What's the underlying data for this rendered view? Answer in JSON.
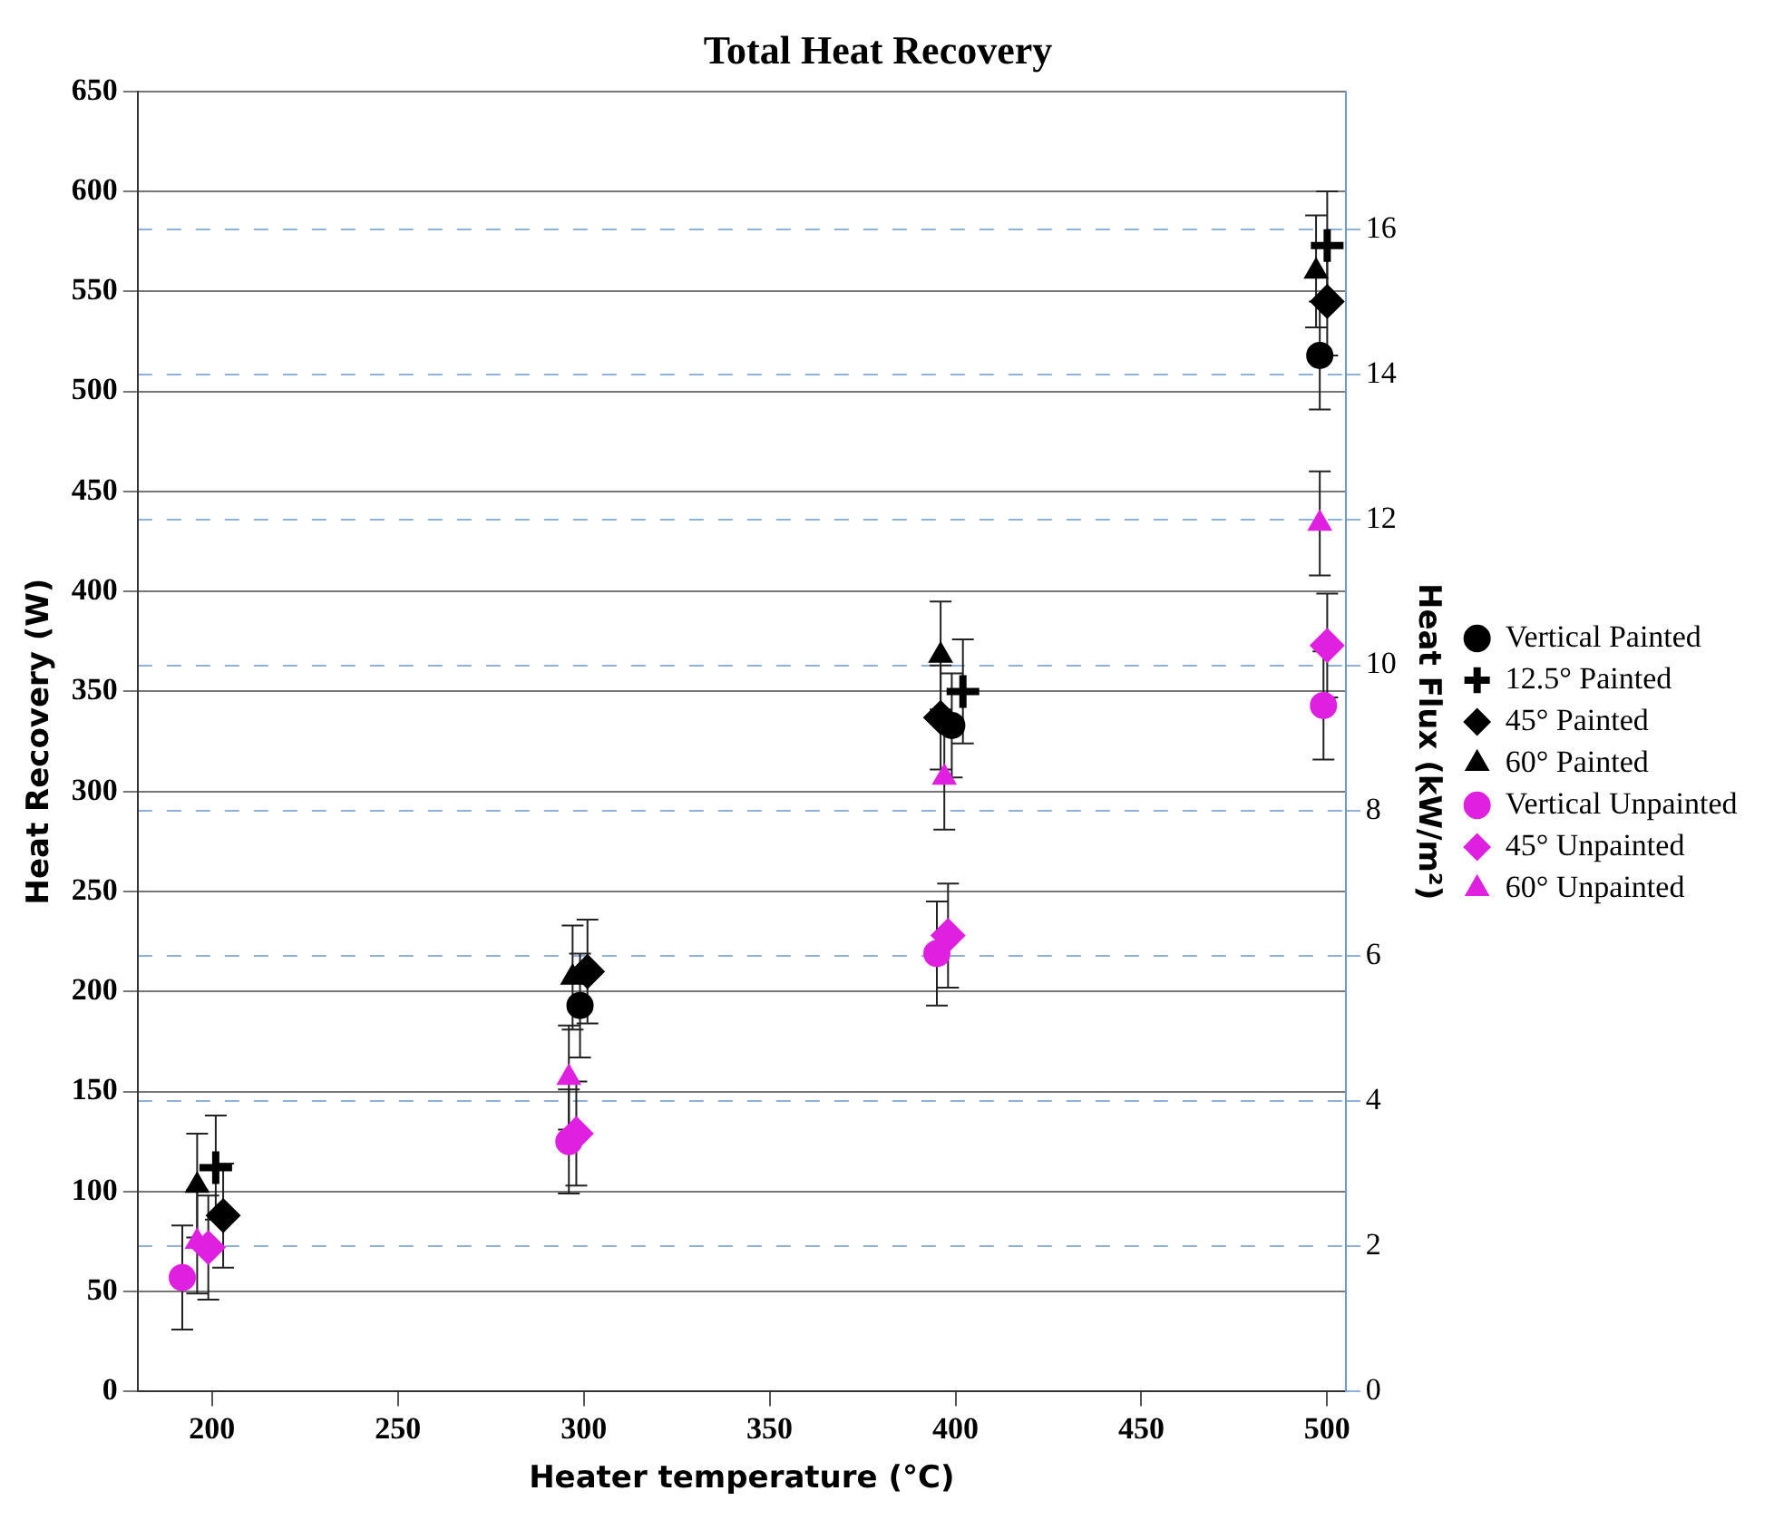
{
  "chart_data": {
    "type": "scatter",
    "title": "Total Heat Recovery",
    "xlabel": "Heater temperature (°C)",
    "ylabel": "Heat Recovery (W)",
    "y2label": "Heat Flux (kW/m²)",
    "xlim": [
      180,
      505
    ],
    "xticks": [
      200,
      250,
      300,
      350,
      400,
      450,
      500
    ],
    "ylim": [
      0,
      650
    ],
    "yticks": [
      0,
      50,
      100,
      150,
      200,
      250,
      300,
      350,
      400,
      450,
      500,
      550,
      600,
      650
    ],
    "y2lim": [
      0,
      17.9
    ],
    "y2ticks": [
      0,
      2,
      4,
      6,
      8,
      10,
      12,
      14,
      16
    ],
    "grid": "y",
    "legend": "right",
    "series": [
      {
        "name": "Vertical Painted",
        "color": "#000000",
        "marker": "circle",
        "x": [
          299,
          399,
          498
        ],
        "values": [
          193,
          333,
          518
        ],
        "errors": [
          26,
          26,
          27
        ]
      },
      {
        "name": "12.5° Painted",
        "color": "#000000",
        "marker": "cross",
        "x": [
          201,
          402,
          500
        ],
        "values": [
          112,
          350,
          573
        ],
        "errors": [
          26,
          26,
          27
        ]
      },
      {
        "name": "45° Painted",
        "color": "#000000",
        "marker": "diamond",
        "x": [
          203,
          301,
          396,
          500
        ],
        "values": [
          88,
          210,
          337,
          545
        ],
        "errors": [
          26,
          26,
          26,
          27
        ]
      },
      {
        "name": "60° Painted",
        "color": "#000000",
        "marker": "triangle",
        "x": [
          196,
          297,
          396,
          497
        ],
        "values": [
          103,
          207,
          368,
          560
        ],
        "errors": [
          26,
          26,
          27,
          28
        ]
      },
      {
        "name": "Vertical Unpainted",
        "color": "#e020e0",
        "marker": "circle",
        "x": [
          192,
          296,
          395,
          499
        ],
        "values": [
          57,
          125,
          219,
          343
        ],
        "errors": [
          26,
          26,
          26,
          27
        ]
      },
      {
        "name": "45° Unpainted",
        "color": "#e020e0",
        "marker": "diamond",
        "x": [
          199,
          298,
          398,
          500
        ],
        "values": [
          72,
          129,
          228,
          373
        ],
        "errors": [
          26,
          26,
          26,
          26
        ]
      },
      {
        "name": "60° Unpainted",
        "color": "#e020e0",
        "marker": "triangle",
        "x": [
          196,
          296,
          397,
          498
        ],
        "values": [
          75,
          157,
          307,
          434
        ],
        "errors": [
          26,
          26,
          26,
          26
        ]
      }
    ]
  }
}
